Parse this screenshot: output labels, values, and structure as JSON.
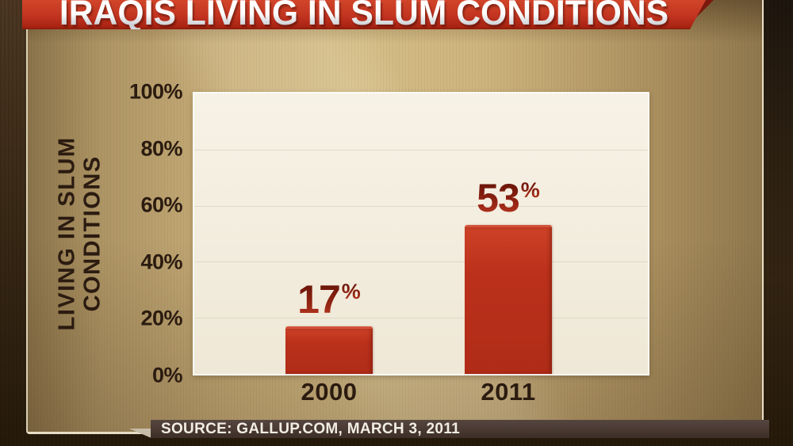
{
  "banner": {
    "title": "IRAQIS LIVING IN SLUM CONDITIONS"
  },
  "source_bar": {
    "text": "SOURCE: GALLUP.COM, MARCH 3, 2011"
  },
  "colors": {
    "banner_red": "#c23420",
    "banner_fold_red": "#7b190d",
    "bar_red": "#b8311c",
    "value_label_red": "#8e1f10",
    "panel_tan": "#c9b17c",
    "plot_cream": "#f2ecdd",
    "axis_text_dark": "#2b1b10",
    "source_bar_bg": "#483931",
    "source_bar_text": "#f2ede4"
  },
  "chart_data": {
    "type": "bar",
    "title": "IRAQIS LIVING IN SLUM CONDITIONS",
    "categories": [
      "2000",
      "2011"
    ],
    "values": [
      17,
      53
    ],
    "value_labels": [
      "17",
      "53"
    ],
    "value_label_suffix": "%",
    "ylabel_lines": [
      "LIVING IN SLUM",
      "CONDITIONS"
    ],
    "ylabel": "LIVING IN SLUM CONDITIONS",
    "xlabel": "",
    "ytick_labels": [
      "100%",
      "80%",
      "60%",
      "40%",
      "20%",
      "0%"
    ],
    "ytick_values": [
      100,
      80,
      60,
      40,
      20,
      0
    ],
    "gridline_values": [
      80,
      60,
      40,
      20
    ],
    "ylim": [
      0,
      100
    ],
    "grid": true,
    "legend": "none",
    "source": "SOURCE: GALLUP.COM, MARCH 3, 2011"
  }
}
